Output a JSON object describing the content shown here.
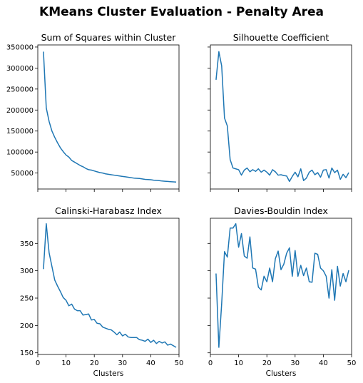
{
  "suptitle": "KMeans Cluster Evaluation - Penalty Area",
  "line_color": "#1f77b4",
  "chart_data": [
    {
      "type": "line",
      "title": "Sum of Squares within Cluster",
      "xlabel": "",
      "ylabel": "",
      "xlim": [
        0,
        50
      ],
      "ylim": [
        12000,
        355000
      ],
      "xticks": [
        0,
        10,
        20,
        30,
        40,
        50
      ],
      "show_xtick_labels": false,
      "yticks": [
        50000,
        100000,
        150000,
        200000,
        250000,
        300000,
        350000
      ],
      "ytick_labels": [
        "50000",
        "100000",
        "150000",
        "200000",
        "250000",
        "300000",
        "350000"
      ],
      "x": [
        2,
        3,
        4,
        5,
        6,
        7,
        8,
        9,
        10,
        11,
        12,
        13,
        14,
        15,
        16,
        17,
        18,
        19,
        20,
        21,
        22,
        23,
        24,
        25,
        26,
        27,
        28,
        29,
        30,
        31,
        32,
        33,
        34,
        35,
        36,
        37,
        38,
        39,
        40,
        41,
        42,
        43,
        44,
        45,
        46,
        47,
        48,
        49
      ],
      "values": [
        339000,
        205000,
        173000,
        150000,
        135000,
        122000,
        110000,
        101000,
        93000,
        88000,
        80000,
        76000,
        72000,
        68000,
        65000,
        61000,
        58000,
        57000,
        55000,
        53000,
        51000,
        50000,
        48000,
        47000,
        46000,
        45000,
        44000,
        43000,
        42000,
        41000,
        40000,
        39000,
        38000,
        37500,
        37000,
        36000,
        35000,
        34500,
        34000,
        33000,
        32500,
        32000,
        31000,
        30500,
        30000,
        29500,
        29000,
        28500
      ]
    },
    {
      "type": "line",
      "title": "Silhouette Coefficient",
      "xlabel": "",
      "ylabel": "",
      "xlim": [
        0,
        50
      ],
      "ylim": [
        12000,
        355000
      ],
      "xticks": [
        0,
        10,
        20,
        30,
        40,
        50
      ],
      "show_xtick_labels": false,
      "yticks": [
        50000,
        100000,
        150000,
        200000,
        250000,
        300000,
        350000
      ],
      "ytick_labels": [],
      "x": [
        2,
        3,
        4,
        5,
        6,
        7,
        8,
        9,
        10,
        11,
        12,
        13,
        14,
        15,
        16,
        17,
        18,
        19,
        20,
        21,
        22,
        23,
        24,
        25,
        26,
        27,
        28,
        29,
        30,
        31,
        32,
        33,
        34,
        35,
        36,
        37,
        38,
        39,
        40,
        41,
        42,
        43,
        44,
        45,
        46,
        47,
        48,
        49
      ],
      "values": [
        272000,
        339000,
        305000,
        181000,
        162000,
        82000,
        62000,
        60000,
        58000,
        45000,
        57000,
        62000,
        53000,
        58000,
        54000,
        60000,
        52000,
        57000,
        52000,
        45000,
        58000,
        53000,
        45000,
        46000,
        44000,
        43000,
        30000,
        42000,
        52000,
        41000,
        60000,
        32000,
        38000,
        52000,
        57000,
        46000,
        51000,
        40000,
        57000,
        58000,
        38000,
        62000,
        51000,
        57000,
        35000,
        47000,
        39000,
        51000
      ]
    },
    {
      "type": "line",
      "title": "Calinski-Harabasz Index",
      "xlabel": "Clusters",
      "ylabel": "",
      "xlim": [
        0,
        50
      ],
      "ylim": [
        147,
        396
      ],
      "xticks": [
        0,
        10,
        20,
        30,
        40,
        50
      ],
      "show_xtick_labels": true,
      "yticks": [
        150,
        200,
        250,
        300,
        350
      ],
      "ytick_labels": [
        "150",
        "200",
        "250",
        "300",
        "350"
      ],
      "x": [
        2,
        3,
        4,
        5,
        6,
        7,
        8,
        9,
        10,
        11,
        12,
        13,
        14,
        15,
        16,
        17,
        18,
        19,
        20,
        21,
        22,
        23,
        24,
        25,
        26,
        27,
        28,
        29,
        30,
        31,
        32,
        33,
        34,
        35,
        36,
        37,
        38,
        39,
        40,
        41,
        42,
        43,
        44,
        45,
        46,
        47,
        48,
        49
      ],
      "values": [
        303,
        386,
        333,
        308,
        283,
        272,
        262,
        251,
        246,
        236,
        239,
        230,
        227,
        227,
        219,
        220,
        221,
        210,
        211,
        204,
        203,
        197,
        195,
        193,
        192,
        188,
        183,
        188,
        181,
        184,
        179,
        178,
        178,
        178,
        174,
        173,
        171,
        175,
        169,
        173,
        167,
        171,
        168,
        170,
        164,
        166,
        163,
        160
      ]
    },
    {
      "type": "line",
      "title": "Davies-Bouldin Index",
      "xlabel": "Clusters",
      "ylabel": "",
      "xlim": [
        0,
        50
      ],
      "ylim": [
        147,
        396
      ],
      "xticks": [
        0,
        10,
        20,
        30,
        40,
        50
      ],
      "show_xtick_labels": true,
      "yticks": [
        150,
        200,
        250,
        300,
        350
      ],
      "ytick_labels": [],
      "x": [
        2,
        3,
        4,
        5,
        6,
        7,
        8,
        9,
        10,
        11,
        12,
        13,
        14,
        15,
        16,
        17,
        18,
        19,
        20,
        21,
        22,
        23,
        24,
        25,
        26,
        27,
        28,
        29,
        30,
        31,
        32,
        33,
        34,
        35,
        36,
        37,
        38,
        39,
        40,
        41,
        42,
        43,
        44,
        45,
        46,
        47,
        48,
        49
      ],
      "values": [
        295,
        160,
        240,
        335,
        325,
        378,
        378,
        386,
        343,
        368,
        327,
        323,
        362,
        305,
        303,
        270,
        265,
        290,
        280,
        305,
        280,
        322,
        336,
        302,
        312,
        332,
        342,
        290,
        337,
        290,
        310,
        291,
        305,
        280,
        279,
        332,
        330,
        305,
        300,
        290,
        250,
        302,
        246,
        308,
        272,
        295,
        280,
        301
      ]
    }
  ]
}
